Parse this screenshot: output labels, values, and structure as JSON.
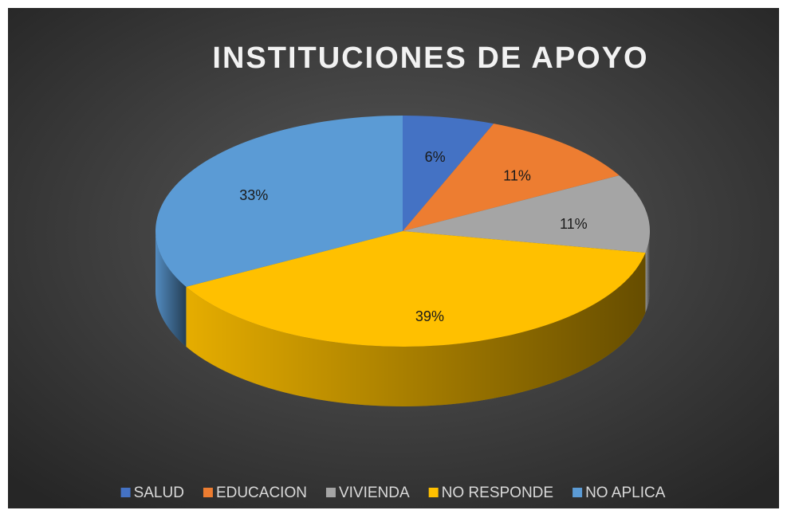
{
  "chart_data": {
    "type": "pie3d",
    "title": "INSTITUCIONES DE APOYO",
    "categories": [
      "SALUD",
      "EDUCACION",
      "VIVIENDA",
      "NO RESPONDE",
      "NO APLICA"
    ],
    "values": [
      6,
      11,
      11,
      39,
      33
    ],
    "value_labels": [
      "6%",
      "11%",
      "11%",
      "39%",
      "33%"
    ],
    "colors": [
      "#4472c4",
      "#ed7d31",
      "#a5a5a5",
      "#ffc000",
      "#5b9bd5"
    ],
    "legend": "bottom"
  }
}
